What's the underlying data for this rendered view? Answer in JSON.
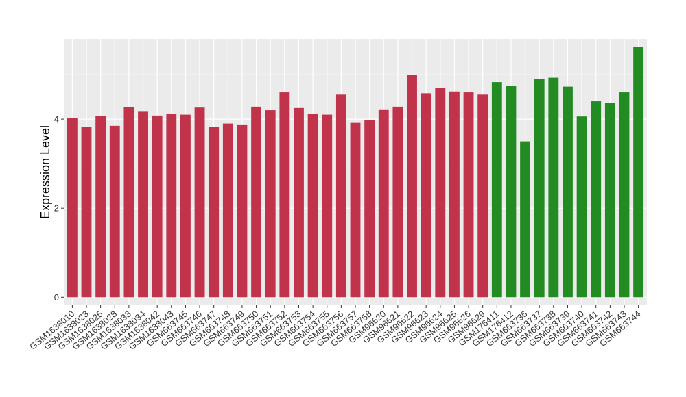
{
  "chart_data": {
    "type": "bar",
    "ylabel": "Expression Level",
    "xlabel": "",
    "ylim": [
      -0.18,
      5.8
    ],
    "yticks": [
      0,
      2,
      4
    ],
    "grid": true,
    "legend": "none",
    "colors": {
      "group1": "#c0334b",
      "group2": "#228b22",
      "panel": "#ebebeb",
      "grid": "#ffffff"
    },
    "categories": [
      "GSM1638010",
      "GSM1638023",
      "GSM1638025",
      "GSM1638028",
      "GSM1638033",
      "GSM1638034",
      "GSM1638042",
      "GSM1638043",
      "GSM663745",
      "GSM663746",
      "GSM663747",
      "GSM663748",
      "GSM663749",
      "GSM663750",
      "GSM663751",
      "GSM663752",
      "GSM663753",
      "GSM663754",
      "GSM663755",
      "GSM663756",
      "GSM663757",
      "GSM663758",
      "GSM96620",
      "GSM96621",
      "GSM96622",
      "GSM96623",
      "GSM96624",
      "GSM96625",
      "GSM96626",
      "GSM96629",
      "GSM176411",
      "GSM176412",
      "GSM663736",
      "GSM663737",
      "GSM663738",
      "GSM663739",
      "GSM663740",
      "GSM663741",
      "GSM663742",
      "GSM663743",
      "GSM663744"
    ],
    "values": [
      4.02,
      3.82,
      4.07,
      3.85,
      4.27,
      4.18,
      4.08,
      4.12,
      4.1,
      4.26,
      3.82,
      3.9,
      3.88,
      4.28,
      4.2,
      4.6,
      4.25,
      4.12,
      4.1,
      4.55,
      3.93,
      3.98,
      4.22,
      4.28,
      5.0,
      4.58,
      4.7,
      4.62,
      4.6,
      4.55,
      4.83,
      4.74,
      3.5,
      4.9,
      4.93,
      4.73,
      4.06,
      4.4,
      4.37,
      4.6,
      5.62
    ],
    "groups": [
      1,
      1,
      1,
      1,
      1,
      1,
      1,
      1,
      1,
      1,
      1,
      1,
      1,
      1,
      1,
      1,
      1,
      1,
      1,
      1,
      1,
      1,
      1,
      1,
      1,
      1,
      1,
      1,
      1,
      1,
      2,
      2,
      2,
      2,
      2,
      2,
      2,
      2,
      2,
      2,
      2
    ]
  }
}
